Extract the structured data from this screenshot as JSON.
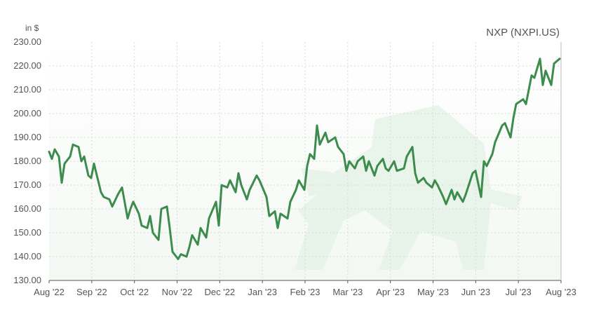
{
  "chart_data": {
    "type": "line",
    "title": "NXP (NXPI.US)",
    "ylabel": "in $",
    "xlabel": "",
    "ylim": [
      130,
      230
    ],
    "grid": true,
    "y_ticks": [
      "230.00",
      "220.00",
      "210.00",
      "200.00",
      "190.00",
      "180.00",
      "170.00",
      "160.00",
      "150.00",
      "140.00",
      "130.00"
    ],
    "x_ticks": [
      "Aug '22",
      "Sep '22",
      "Oct '22",
      "Nov '22",
      "Dec '22",
      "Jan '23",
      "Feb '23",
      "Mar '23",
      "Apr '23",
      "May '23",
      "Jun '23",
      "Jul '23",
      "Aug '23"
    ],
    "series": [
      {
        "x": [
          "2022-08-01",
          "2022-08-03",
          "2022-08-05",
          "2022-08-08",
          "2022-08-10",
          "2022-08-12",
          "2022-08-16",
          "2022-08-18",
          "2022-08-22",
          "2022-08-24",
          "2022-08-26",
          "2022-08-29",
          "2022-08-31",
          "2022-09-02",
          "2022-09-07",
          "2022-09-09",
          "2022-09-13",
          "2022-09-15",
          "2022-09-19",
          "2022-09-22",
          "2022-09-26",
          "2022-09-28",
          "2022-09-30",
          "2022-10-04",
          "2022-10-06",
          "2022-10-10",
          "2022-10-12",
          "2022-10-14",
          "2022-10-18",
          "2022-10-20",
          "2022-10-24",
          "2022-10-26",
          "2022-10-28",
          "2022-11-01",
          "2022-11-03",
          "2022-11-07",
          "2022-11-09",
          "2022-11-11",
          "2022-11-15",
          "2022-11-17",
          "2022-11-21",
          "2022-11-23",
          "2022-11-28",
          "2022-11-30",
          "2022-12-02",
          "2022-12-06",
          "2022-12-08",
          "2022-12-12",
          "2022-12-14",
          "2022-12-16",
          "2022-12-20",
          "2022-12-22",
          "2022-12-27",
          "2022-12-29",
          "2023-01-03",
          "2023-01-05",
          "2023-01-09",
          "2023-01-11",
          "2023-01-13",
          "2023-01-18",
          "2023-01-20",
          "2023-01-24",
          "2023-01-26",
          "2023-01-30",
          "2023-02-01",
          "2023-02-03",
          "2023-02-06",
          "2023-02-08",
          "2023-02-10",
          "2023-02-14",
          "2023-02-16",
          "2023-02-21",
          "2023-02-23",
          "2023-02-27",
          "2023-03-01",
          "2023-03-03",
          "2023-03-07",
          "2023-03-09",
          "2023-03-13",
          "2023-03-15",
          "2023-03-17",
          "2023-03-21",
          "2023-03-23",
          "2023-03-27",
          "2023-03-29",
          "2023-03-31",
          "2023-04-04",
          "2023-04-06",
          "2023-04-11",
          "2023-04-13",
          "2023-04-17",
          "2023-04-19",
          "2023-04-21",
          "2023-04-25",
          "2023-04-27",
          "2023-05-01",
          "2023-05-03",
          "2023-05-05",
          "2023-05-09",
          "2023-05-11",
          "2023-05-15",
          "2023-05-17",
          "2023-05-19",
          "2023-05-23",
          "2023-05-25",
          "2023-05-30",
          "2023-06-01",
          "2023-06-05",
          "2023-06-07",
          "2023-06-09",
          "2023-06-13",
          "2023-06-15",
          "2023-06-20",
          "2023-06-22",
          "2023-06-26",
          "2023-06-28",
          "2023-06-30",
          "2023-07-05",
          "2023-07-07",
          "2023-07-11",
          "2023-07-13",
          "2023-07-17",
          "2023-07-19",
          "2023-07-21",
          "2023-07-25",
          "2023-07-27",
          "2023-07-31"
        ],
        "values": [
          184,
          181,
          185,
          182,
          171,
          179,
          182,
          187,
          186,
          180,
          182,
          174,
          173,
          179,
          167,
          165,
          164,
          161,
          166,
          169,
          156,
          160,
          163,
          158,
          153,
          152,
          157,
          150,
          147,
          160,
          161,
          152,
          142,
          139,
          141,
          140,
          144,
          149,
          145,
          152,
          148,
          156,
          163,
          153,
          170,
          169,
          172,
          167,
          175,
          170,
          164,
          168,
          174,
          172,
          165,
          157,
          159,
          152,
          158,
          156,
          163,
          168,
          172,
          168,
          178,
          183,
          181,
          195,
          187,
          192,
          188,
          190,
          186,
          183,
          176,
          180,
          177,
          180,
          182,
          176,
          180,
          174,
          178,
          181,
          177,
          176,
          180,
          176,
          177,
          182,
          186,
          175,
          171,
          173,
          171,
          169,
          172,
          170,
          165,
          162,
          168,
          164,
          167,
          163,
          166,
          175,
          176,
          165,
          180,
          178,
          183,
          188,
          195,
          196,
          190,
          198,
          204,
          206,
          204,
          216,
          215,
          223,
          212,
          218,
          212,
          221,
          223
        ]
      }
    ]
  }
}
